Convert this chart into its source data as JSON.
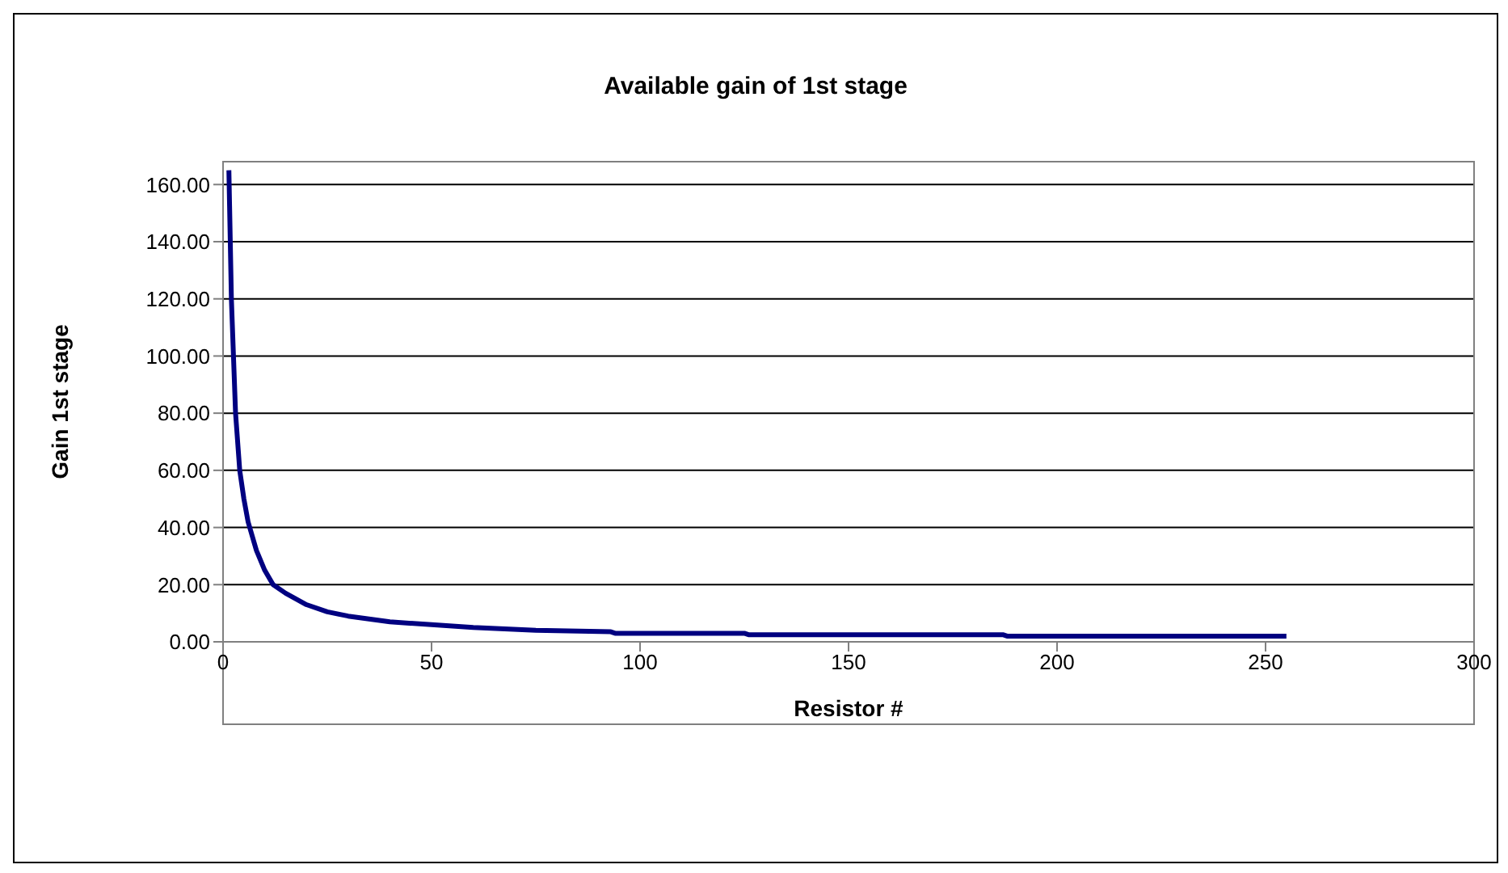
{
  "chart_data": {
    "type": "line",
    "title": "Available gain of 1st stage",
    "xlabel": "Resistor #",
    "ylabel": "Gain 1st stage",
    "series": [
      {
        "color": "#000080",
        "x": [
          1.4,
          2,
          3,
          4,
          5,
          6,
          8,
          10,
          12,
          15,
          20,
          25,
          30,
          40,
          50,
          60,
          75,
          93,
          94,
          125,
          126,
          187,
          188,
          255
        ],
        "values": [
          165,
          120,
          80,
          60,
          50,
          42,
          32,
          25,
          20,
          17,
          13,
          10.5,
          9,
          7,
          6,
          5,
          4,
          3.5,
          3,
          3,
          2.5,
          2.5,
          2,
          2
        ]
      }
    ],
    "xlim": [
      0,
      300
    ],
    "xticks": [
      0,
      50,
      100,
      150,
      200,
      250,
      300
    ],
    "ylim": [
      0,
      168
    ],
    "yticks": [
      {
        "value": 0,
        "label": "0.00"
      },
      {
        "value": 20,
        "label": "20.00"
      },
      {
        "value": 40,
        "label": "40.00"
      },
      {
        "value": 60,
        "label": "60.00"
      },
      {
        "value": 80,
        "label": "80.00"
      },
      {
        "value": 100,
        "label": "100.00"
      },
      {
        "value": 120,
        "label": "120.00"
      },
      {
        "value": 140,
        "label": "140.00"
      },
      {
        "value": 160,
        "label": "160.00"
      }
    ],
    "grid": "y",
    "legend": false,
    "marker": "none",
    "line_style": "solid"
  }
}
